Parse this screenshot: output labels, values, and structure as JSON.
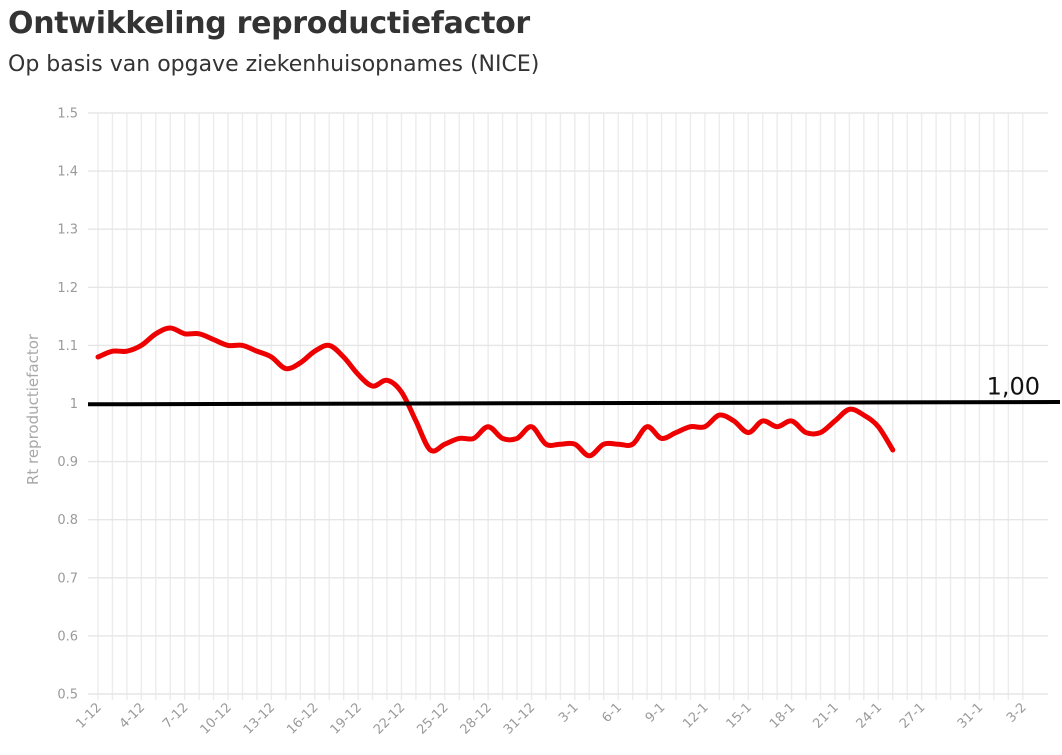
{
  "title": "Ontwikkeling reproductiefactor",
  "subtitle": "Op basis van opgave ziekenhuisopnames (NICE)",
  "chart_data": {
    "type": "line",
    "title": "Ontwikkeling reproductiefactor",
    "subtitle": "Op basis van opgave ziekenhuisopnames (NICE)",
    "xlabel": "",
    "ylabel": "Rt reproductiefactor",
    "ylim": [
      0.5,
      1.5
    ],
    "yticks": [
      0.5,
      0.6,
      0.7,
      0.8,
      0.9,
      1,
      1.1,
      1.2,
      1.3,
      1.4,
      1.5
    ],
    "ytick_labels": [
      "0.5",
      "0.6",
      "0.7",
      "0.8",
      "0.9",
      "1",
      "1.1",
      "1.2",
      "1.3",
      "1.4",
      "1.5"
    ],
    "x_categories": [
      "1-12",
      "2-12",
      "3-12",
      "4-12",
      "5-12",
      "6-12",
      "7-12",
      "8-12",
      "9-12",
      "10-12",
      "11-12",
      "12-12",
      "13-12",
      "14-12",
      "15-12",
      "16-12",
      "17-12",
      "18-12",
      "19-12",
      "20-12",
      "21-12",
      "22-12",
      "23-12",
      "24-12",
      "25-12",
      "26-12",
      "27-12",
      "28-12",
      "29-12",
      "30-12",
      "31-12",
      "1-1",
      "2-1",
      "3-1",
      "4-1",
      "5-1",
      "6-1",
      "7-1",
      "8-1",
      "9-1",
      "10-1",
      "11-1",
      "12-1",
      "13-1",
      "14-1",
      "15-1",
      "16-1",
      "17-1",
      "18-1",
      "19-1",
      "20-1",
      "21-1",
      "22-1",
      "23-1",
      "24-1",
      "25-1",
      "26-1",
      "27-1",
      "28-1",
      "29-1",
      "30-1",
      "31-1",
      "1-2",
      "2-2",
      "3-2"
    ],
    "x_tick_labels": [
      "1-12",
      "4-12",
      "7-12",
      "10-12",
      "13-12",
      "16-12",
      "19-12",
      "22-12",
      "25-12",
      "28-12",
      "31-12",
      "3-1",
      "6-1",
      "9-1",
      "12-1",
      "15-1",
      "18-1",
      "21-1",
      "24-1",
      "27-1",
      "31-1",
      "3-2"
    ],
    "grid": true,
    "series": [
      {
        "color": "#ee0000",
        "x": [
          "1-12",
          "2-12",
          "3-12",
          "4-12",
          "5-12",
          "6-12",
          "7-12",
          "8-12",
          "9-12",
          "10-12",
          "11-12",
          "12-12",
          "13-12",
          "14-12",
          "15-12",
          "16-12",
          "17-12",
          "18-12",
          "19-12",
          "20-12",
          "21-12",
          "22-12",
          "23-12",
          "24-12",
          "25-12",
          "26-12",
          "27-12",
          "28-12",
          "29-12",
          "30-12",
          "31-12",
          "1-1",
          "2-1",
          "3-1",
          "4-1",
          "5-1",
          "6-1",
          "7-1",
          "8-1",
          "9-1",
          "10-1",
          "11-1",
          "12-1",
          "13-1",
          "14-1",
          "15-1",
          "16-1",
          "17-1",
          "18-1",
          "19-1",
          "20-1",
          "21-1",
          "22-1",
          "23-1",
          "24-1",
          "25-1"
        ],
        "values": [
          1.08,
          1.09,
          1.09,
          1.1,
          1.12,
          1.13,
          1.12,
          1.12,
          1.11,
          1.1,
          1.1,
          1.09,
          1.08,
          1.06,
          1.07,
          1.09,
          1.1,
          1.08,
          1.05,
          1.03,
          1.04,
          1.02,
          0.97,
          0.92,
          0.93,
          0.94,
          0.94,
          0.96,
          0.94,
          0.94,
          0.96,
          0.93,
          0.93,
          0.93,
          0.91,
          0.93,
          0.93,
          0.93,
          0.96,
          0.94,
          0.95,
          0.96,
          0.96,
          0.98,
          0.97,
          0.95,
          0.97,
          0.96,
          0.97,
          0.95,
          0.95,
          0.97,
          0.99,
          0.98,
          0.96,
          0.92
        ]
      }
    ],
    "reference_line": {
      "value": 1.0,
      "label": "1,00",
      "color": "#000000"
    }
  }
}
